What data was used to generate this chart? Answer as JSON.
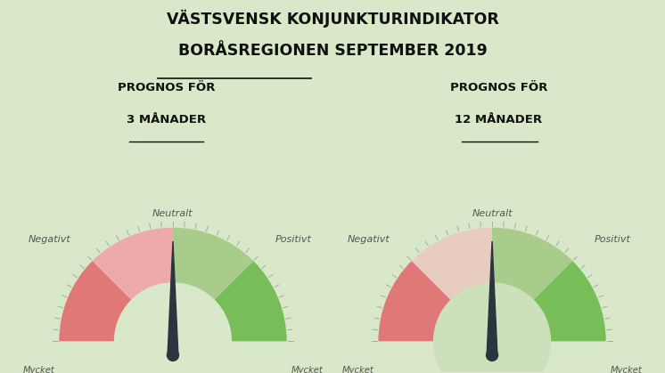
{
  "title_line1": "VÄSTSVENSK KONJUNKTURINDIKATOR",
  "title_line2": "BORÅSREGIONEN SEPTEMBER 2019",
  "bg_color_left": "#d8e8c8",
  "bg_color_right": "#cce0bc",
  "subtitle_left_line1": "PROGNOS FÖR",
  "subtitle_left_line2": "3 MÅNADER",
  "subtitle_right_line1": "PROGNOS FÖR",
  "subtitle_right_line2": "12 MÅNADER",
  "colors": {
    "mycket_negativt": "#e07878",
    "negativt": "#eeaaaa",
    "neutralt_left": "#e8c8c0",
    "neutralt_right": "#e8ccc0",
    "positivt": "#a8cc8c",
    "mycket_positivt": "#78be58"
  },
  "tick_color": "#aaaaaa",
  "needle_color": "#2a3540",
  "text_color": "#555555",
  "title_color": "#111111",
  "divider_color": "#c0d4b0"
}
